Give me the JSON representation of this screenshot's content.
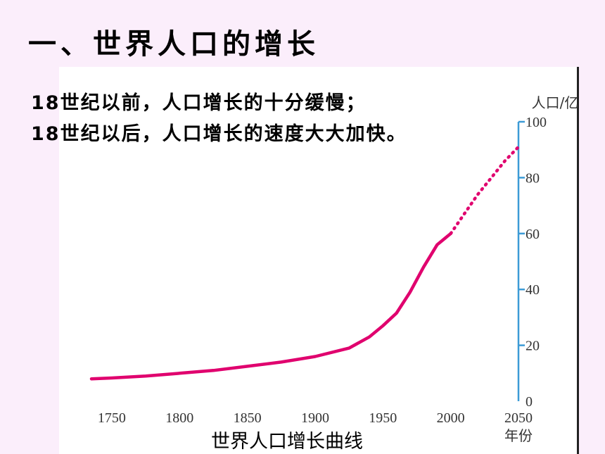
{
  "slide": {
    "title": "一、世界人口的增长",
    "notes": [
      "18世纪以前，人口增长的十分缓慢；",
      "18世纪以后，人口增长的速度大大加快。"
    ],
    "caption": "世界人口增长曲线"
  },
  "chart_data": {
    "type": "line",
    "title": "",
    "xlabel": "年份",
    "ylabel": "人口/亿",
    "xlim": [
      1735,
      2050
    ],
    "ylim": [
      0,
      100
    ],
    "x_ticks": [
      "1750",
      "1800",
      "1850",
      "1900",
      "1950",
      "2000",
      "2050"
    ],
    "y_ticks": [
      "100",
      "80",
      "60",
      "40",
      "20",
      "0"
    ],
    "series": [
      {
        "style": "solid",
        "color": "#e0006e",
        "x": [
          1735,
          1750,
          1775,
          1800,
          1825,
          1850,
          1875,
          1900,
          1925,
          1940,
          1950,
          1960,
          1970,
          1980,
          1990,
          2000
        ],
        "y": [
          8,
          8.3,
          9,
          10,
          11,
          12.5,
          14,
          16,
          19,
          23,
          27,
          31.5,
          39,
          48,
          56,
          60
        ]
      },
      {
        "style": "dotted",
        "color": "#e0006e",
        "x": [
          2000,
          2010,
          2020,
          2030,
          2040,
          2050
        ],
        "y": [
          60,
          67,
          74,
          80,
          86,
          91
        ]
      }
    ],
    "axis_color": "#3c9bd6",
    "grid": false,
    "legend": "none"
  }
}
